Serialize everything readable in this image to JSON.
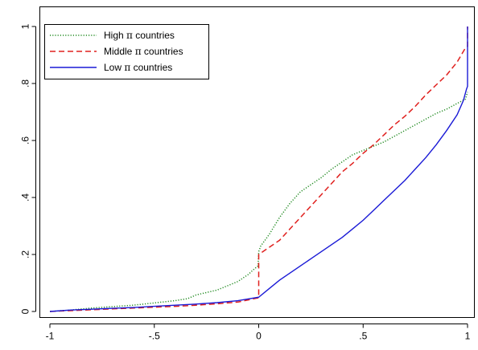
{
  "chart_data": {
    "type": "line",
    "title": "",
    "xlabel": "",
    "ylabel": "",
    "xlim": [
      -1,
      1
    ],
    "ylim": [
      0,
      1
    ],
    "x_ticks": [
      -1,
      -0.5,
      0,
      0.5,
      1
    ],
    "x_tick_labels": [
      "-1",
      "-.5",
      "0",
      ".5",
      "1"
    ],
    "y_ticks": [
      0,
      0.2,
      0.4,
      0.6,
      0.8,
      1
    ],
    "y_tick_labels": [
      "0",
      ".2",
      ".4",
      ".6",
      ".8",
      "1"
    ],
    "grid": false,
    "legend_position": "top-left",
    "series": [
      {
        "name": "High π countries",
        "legend_label": {
          "before": "High ",
          "symbol": "π",
          "after": " countries"
        },
        "color": "#228b22",
        "style": "dotted",
        "points": [
          [
            -1,
            0
          ],
          [
            -0.9,
            0.005
          ],
          [
            -0.8,
            0.012
          ],
          [
            -0.7,
            0.017
          ],
          [
            -0.6,
            0.022
          ],
          [
            -0.5,
            0.03
          ],
          [
            -0.4,
            0.038
          ],
          [
            -0.34,
            0.045
          ],
          [
            -0.3,
            0.058
          ],
          [
            -0.2,
            0.075
          ],
          [
            -0.1,
            0.105
          ],
          [
            -0.05,
            0.13
          ],
          [
            -0.02,
            0.15
          ],
          [
            -0.003,
            0.16
          ],
          [
            0,
            0.21
          ],
          [
            0.01,
            0.23
          ],
          [
            0.05,
            0.27
          ],
          [
            0.1,
            0.33
          ],
          [
            0.15,
            0.38
          ],
          [
            0.2,
            0.42
          ],
          [
            0.25,
            0.445
          ],
          [
            0.3,
            0.47
          ],
          [
            0.35,
            0.5
          ],
          [
            0.4,
            0.525
          ],
          [
            0.45,
            0.55
          ],
          [
            0.5,
            0.565
          ],
          [
            0.55,
            0.58
          ],
          [
            0.6,
            0.595
          ],
          [
            0.65,
            0.615
          ],
          [
            0.7,
            0.635
          ],
          [
            0.75,
            0.655
          ],
          [
            0.8,
            0.675
          ],
          [
            0.85,
            0.695
          ],
          [
            0.9,
            0.71
          ],
          [
            0.95,
            0.73
          ],
          [
            0.99,
            0.745
          ],
          [
            1,
            0.77
          ]
        ]
      },
      {
        "name": "Middle π countries",
        "legend_label": {
          "before": "Middle ",
          "symbol": "π",
          "after": " countries"
        },
        "color": "#e0201e",
        "style": "dashed",
        "points": [
          [
            -1,
            0
          ],
          [
            -0.9,
            0.003
          ],
          [
            -0.8,
            0.006
          ],
          [
            -0.7,
            0.009
          ],
          [
            -0.6,
            0.012
          ],
          [
            -0.5,
            0.015
          ],
          [
            -0.4,
            0.018
          ],
          [
            -0.3,
            0.022
          ],
          [
            -0.2,
            0.027
          ],
          [
            -0.1,
            0.033
          ],
          [
            0,
            0.048
          ],
          [
            0,
            0.2
          ],
          [
            0.05,
            0.225
          ],
          [
            0.1,
            0.25
          ],
          [
            0.15,
            0.29
          ],
          [
            0.2,
            0.33
          ],
          [
            0.25,
            0.37
          ],
          [
            0.3,
            0.41
          ],
          [
            0.35,
            0.45
          ],
          [
            0.4,
            0.49
          ],
          [
            0.45,
            0.52
          ],
          [
            0.5,
            0.555
          ],
          [
            0.55,
            0.585
          ],
          [
            0.6,
            0.62
          ],
          [
            0.65,
            0.655
          ],
          [
            0.7,
            0.685
          ],
          [
            0.75,
            0.72
          ],
          [
            0.8,
            0.76
          ],
          [
            0.85,
            0.795
          ],
          [
            0.9,
            0.83
          ],
          [
            0.95,
            0.875
          ],
          [
            0.99,
            0.925
          ],
          [
            1,
            0.93
          ],
          [
            1,
            1
          ]
        ]
      },
      {
        "name": "Low π countries",
        "legend_label": {
          "before": "Low ",
          "symbol": "π",
          "after": " countries"
        },
        "color": "#1a1ad6",
        "style": "solid",
        "points": [
          [
            -1,
            0
          ],
          [
            -0.9,
            0.005
          ],
          [
            -0.8,
            0.008
          ],
          [
            -0.7,
            0.011
          ],
          [
            -0.6,
            0.014
          ],
          [
            -0.5,
            0.018
          ],
          [
            -0.4,
            0.022
          ],
          [
            -0.3,
            0.026
          ],
          [
            -0.2,
            0.031
          ],
          [
            -0.1,
            0.038
          ],
          [
            0,
            0.05
          ],
          [
            0.05,
            0.08
          ],
          [
            0.1,
            0.11
          ],
          [
            0.15,
            0.135
          ],
          [
            0.2,
            0.16
          ],
          [
            0.25,
            0.185
          ],
          [
            0.3,
            0.21
          ],
          [
            0.35,
            0.235
          ],
          [
            0.4,
            0.26
          ],
          [
            0.45,
            0.29
          ],
          [
            0.5,
            0.32
          ],
          [
            0.55,
            0.355
          ],
          [
            0.6,
            0.39
          ],
          [
            0.65,
            0.425
          ],
          [
            0.7,
            0.46
          ],
          [
            0.75,
            0.5
          ],
          [
            0.8,
            0.54
          ],
          [
            0.85,
            0.585
          ],
          [
            0.9,
            0.635
          ],
          [
            0.95,
            0.69
          ],
          [
            0.98,
            0.74
          ],
          [
            0.995,
            0.78
          ],
          [
            1,
            0.79
          ],
          [
            1,
            1
          ]
        ]
      }
    ]
  }
}
